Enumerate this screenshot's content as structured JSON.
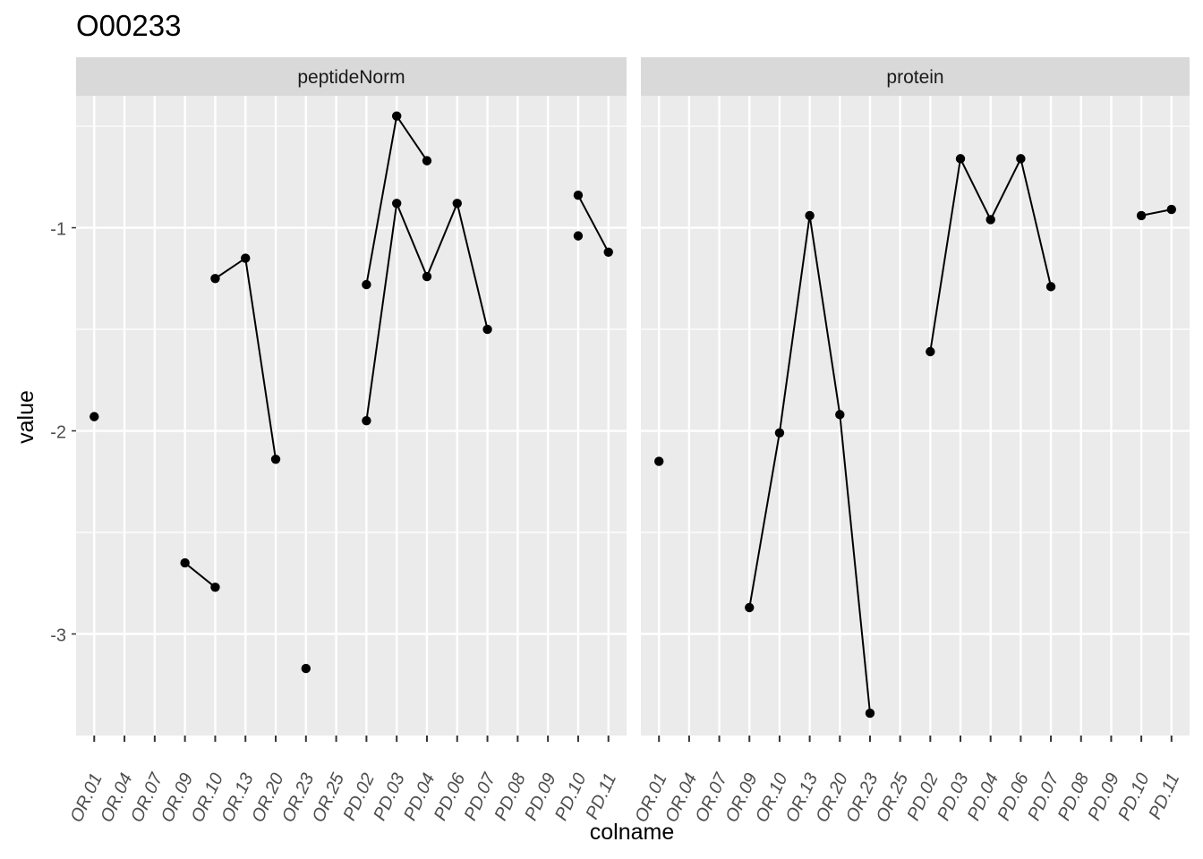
{
  "chart_data": {
    "type": "line",
    "title": "O00233",
    "xlabel": "colname",
    "ylabel": "value",
    "categories": [
      "OR.01",
      "OR.04",
      "OR.07",
      "OR.09",
      "OR.10",
      "OR.13",
      "OR.20",
      "OR.23",
      "OR.25",
      "PD.02",
      "PD.03",
      "PD.04",
      "PD.06",
      "PD.07",
      "PD.08",
      "PD.09",
      "PD.10",
      "PD.11"
    ],
    "ylim": [
      -3.5,
      -0.35
    ],
    "yticks": [
      -3,
      -2,
      -1
    ],
    "ytick_labels": [
      "-3",
      "-2",
      "-1"
    ],
    "grid": true,
    "panels": [
      {
        "name": "peptideNorm",
        "series": [
          {
            "points": [
              [
                "OR.01",
                -1.93
              ]
            ]
          },
          {
            "points": [
              [
                "OR.09",
                -2.65
              ],
              [
                "OR.10",
                -2.77
              ]
            ]
          },
          {
            "points": [
              [
                "OR.10",
                -1.25
              ],
              [
                "OR.13",
                -1.15
              ],
              [
                "OR.20",
                -2.14
              ]
            ]
          },
          {
            "points": [
              [
                "OR.23",
                -3.17
              ]
            ]
          },
          {
            "points": [
              [
                "PD.02",
                -1.28
              ],
              [
                "PD.03",
                -0.45
              ],
              [
                "PD.04",
                -0.67
              ]
            ]
          },
          {
            "points": [
              [
                "PD.02",
                -1.95
              ],
              [
                "PD.03",
                -0.88
              ],
              [
                "PD.04",
                -1.24
              ],
              [
                "PD.06",
                -0.88
              ],
              [
                "PD.07",
                -1.5
              ]
            ]
          },
          {
            "points": [
              [
                "PD.10",
                -0.84
              ],
              [
                "PD.11",
                -1.12
              ]
            ]
          },
          {
            "points": [
              [
                "PD.10",
                -1.04
              ]
            ]
          }
        ]
      },
      {
        "name": "protein",
        "series": [
          {
            "points": [
              [
                "OR.01",
                -2.15
              ]
            ]
          },
          {
            "points": [
              [
                "OR.09",
                -2.87
              ],
              [
                "OR.10",
                -2.01
              ],
              [
                "OR.13",
                -0.94
              ],
              [
                "OR.20",
                -1.92
              ],
              [
                "OR.23",
                -3.39
              ]
            ]
          },
          {
            "points": [
              [
                "PD.02",
                -1.61
              ],
              [
                "PD.03",
                -0.66
              ],
              [
                "PD.04",
                -0.96
              ],
              [
                "PD.06",
                -0.66
              ],
              [
                "PD.07",
                -1.29
              ]
            ]
          },
          {
            "points": [
              [
                "PD.10",
                -0.94
              ],
              [
                "PD.11",
                -0.91
              ]
            ]
          }
        ]
      }
    ]
  }
}
